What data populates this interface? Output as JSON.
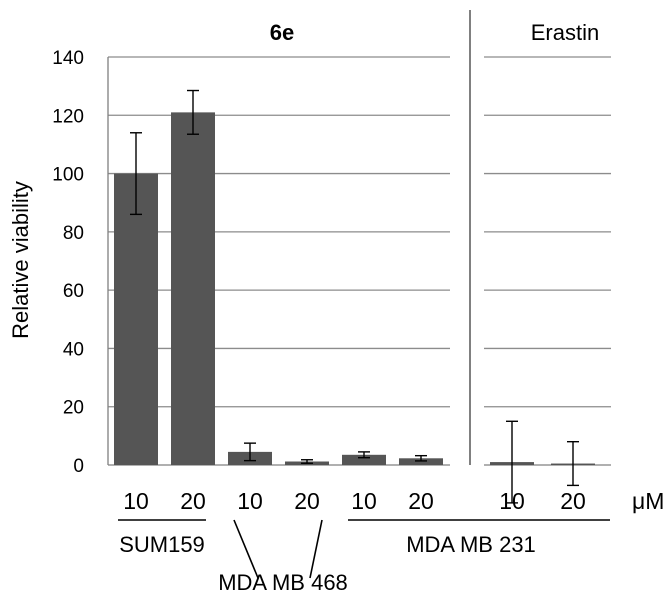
{
  "chart_data": {
    "type": "bar",
    "ylabel": "Relative viability",
    "ylim": [
      0,
      140
    ],
    "yticks": [
      0,
      20,
      40,
      60,
      80,
      100,
      120,
      140
    ],
    "grid": true,
    "unit": "μM",
    "panels": [
      {
        "title": "6e",
        "bold": true
      },
      {
        "title": "Erastin",
        "bold": false
      }
    ],
    "bars": [
      {
        "panel": 0,
        "cell_line": "SUM159",
        "concentration": "10",
        "value": 100,
        "error": 14
      },
      {
        "panel": 0,
        "cell_line": "SUM159",
        "concentration": "20",
        "value": 121,
        "error": 7.5
      },
      {
        "panel": 0,
        "cell_line": "MDA MB 468",
        "concentration": "10",
        "value": 4.5,
        "error": 3
      },
      {
        "panel": 0,
        "cell_line": "MDA MB 468",
        "concentration": "20",
        "value": 1.2,
        "error": 0.6
      },
      {
        "panel": 0,
        "cell_line": "MDA MB 231",
        "concentration": "10",
        "value": 3.5,
        "error": 1
      },
      {
        "panel": 0,
        "cell_line": "MDA MB 231",
        "concentration": "20",
        "value": 2.3,
        "error": 0.9
      },
      {
        "panel": 1,
        "cell_line": "MDA MB 231",
        "concentration": "10",
        "value": 1,
        "error": 14
      },
      {
        "panel": 1,
        "cell_line": "MDA MB 231",
        "concentration": "20",
        "value": 0.5,
        "error": 7.5
      }
    ],
    "group_labels": [
      "SUM159",
      "MDA MB 468",
      "MDA MB 231"
    ],
    "colors": {
      "bar": "#555555",
      "grid": "#8c8c8c",
      "axis": "#808080"
    }
  }
}
